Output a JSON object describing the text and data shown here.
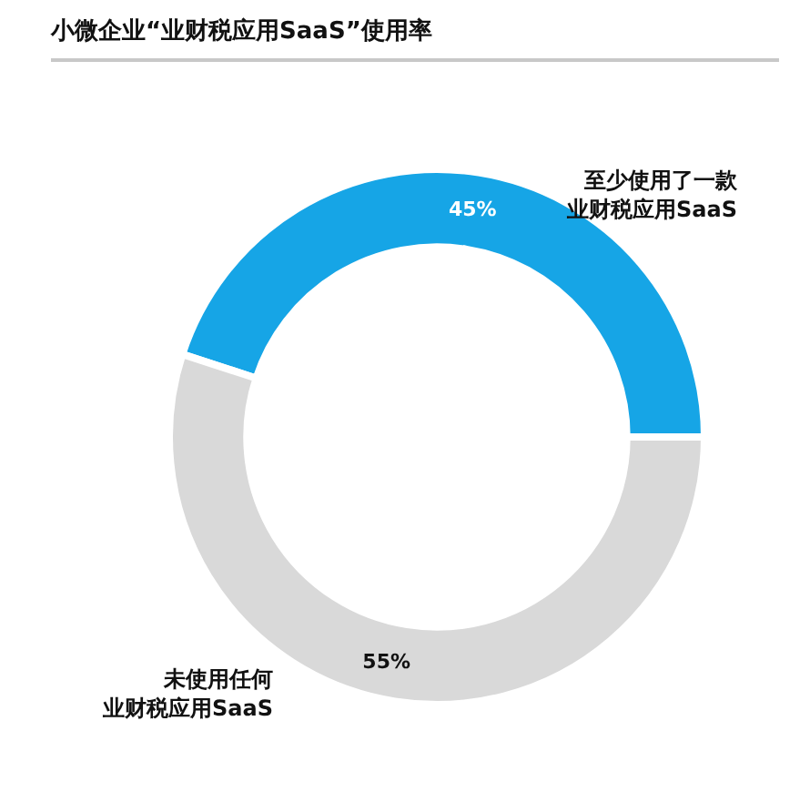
{
  "chart_data": {
    "type": "donut",
    "title": "小微企业“业财税应用SaaS”使用率",
    "categories": [
      "至少使用了一款业财税应用SaaS",
      "未使用任何业财税应用SaaS"
    ],
    "values": [
      45,
      55
    ],
    "colors": [
      "#16a5e6",
      "#d9d9d9"
    ],
    "value_labels": [
      "45%",
      "55%"
    ],
    "legend": false
  }
}
